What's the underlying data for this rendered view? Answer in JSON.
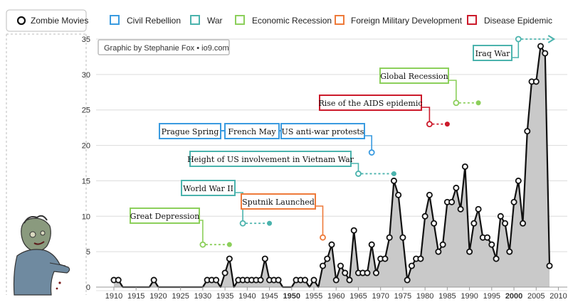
{
  "legend": [
    {
      "key": "zombie",
      "label": "Zombie Movies",
      "color": "#111111"
    },
    {
      "key": "civil",
      "label": "Civil Rebellion",
      "color": "#3a9be0"
    },
    {
      "key": "war",
      "label": "War",
      "color": "#4bb3ad"
    },
    {
      "key": "econ",
      "label": "Economic Recession",
      "color": "#8ccf5b"
    },
    {
      "key": "military",
      "label": "Foreign Military Development",
      "color": "#ee7a3a"
    },
    {
      "key": "disease",
      "label": "Disease Epidemic",
      "color": "#cc1a2b"
    }
  ],
  "credit": "Graphic by Stephanie Fox • io9.com",
  "chart_data": {
    "type": "area",
    "xlim": [
      1906,
      2012
    ],
    "ylim": [
      0,
      35
    ],
    "x_ticks": [
      1910,
      1915,
      1920,
      1925,
      1930,
      1935,
      1940,
      1945,
      1950,
      1955,
      1960,
      1965,
      1970,
      1975,
      1980,
      1985,
      1990,
      1995,
      2000,
      2005,
      2010
    ],
    "bold_x_ticks": [
      1950,
      2000
    ],
    "highlight_x_tick": 2010,
    "y_ticks": [
      0,
      5,
      10,
      15,
      20,
      25,
      30,
      35
    ],
    "grid": true,
    "series": [
      {
        "name": "Zombie Movies",
        "x": [
          1910,
          1911,
          1912,
          1913,
          1914,
          1915,
          1916,
          1917,
          1918,
          1919,
          1920,
          1921,
          1922,
          1923,
          1924,
          1925,
          1926,
          1927,
          1928,
          1929,
          1930,
          1931,
          1932,
          1933,
          1934,
          1935,
          1936,
          1937,
          1938,
          1939,
          1940,
          1941,
          1942,
          1943,
          1944,
          1945,
          1946,
          1947,
          1948,
          1949,
          1950,
          1951,
          1952,
          1953,
          1954,
          1955,
          1956,
          1957,
          1958,
          1959,
          1960,
          1961,
          1962,
          1963,
          1964,
          1965,
          1966,
          1967,
          1968,
          1969,
          1970,
          1971,
          1972,
          1973,
          1974,
          1975,
          1976,
          1977,
          1978,
          1979,
          1980,
          1981,
          1982,
          1983,
          1984,
          1985,
          1986,
          1987,
          1988,
          1989,
          1990,
          1991,
          1992,
          1993,
          1994,
          1995,
          1996,
          1997,
          1998,
          1999,
          2000,
          2001,
          2002,
          2003,
          2004,
          2005,
          2006,
          2007,
          2008
        ],
        "values": [
          1,
          1,
          0,
          0,
          0,
          0,
          0,
          0,
          0,
          1,
          0,
          0,
          0,
          0,
          0,
          0,
          0,
          0,
          0,
          0,
          0,
          1,
          1,
          1,
          0,
          2,
          4,
          0,
          1,
          1,
          1,
          1,
          1,
          1,
          4,
          1,
          1,
          1,
          0,
          0,
          0,
          1,
          1,
          1,
          0,
          1,
          0,
          3,
          4,
          6,
          1,
          3,
          2,
          1,
          8,
          2,
          2,
          2,
          6,
          2,
          4,
          4,
          7,
          15,
          13,
          7,
          1,
          3,
          4,
          4,
          10,
          13,
          9,
          5,
          6,
          12,
          12,
          14,
          11,
          17,
          5,
          9,
          11,
          7,
          7,
          6,
          4,
          10,
          9,
          5,
          12,
          15,
          9,
          22,
          29,
          29,
          34,
          33,
          3
        ],
        "markers": [
          1910,
          1911,
          1919,
          1931,
          1932,
          1933,
          1935,
          1936,
          1938,
          1939,
          1940,
          1941,
          1942,
          1943,
          1944,
          1945,
          1946,
          1947,
          1951,
          1952,
          1953,
          1955,
          1957,
          1958,
          1959,
          1960,
          1961,
          1962,
          1963,
          1964,
          1965,
          1966,
          1967,
          1968,
          1969,
          1970,
          1971,
          1972,
          1973,
          1974,
          1975,
          1976,
          1977,
          1978,
          1979,
          1980,
          1981,
          1982,
          1983,
          1984,
          1985,
          1986,
          1987,
          1988,
          1989,
          1990,
          1991,
          1992,
          1993,
          1994,
          1995,
          1996,
          1997,
          1998,
          1999,
          2000,
          2001,
          2002,
          2003,
          2004,
          2005,
          2006,
          2007,
          2008
        ]
      }
    ],
    "annotations": [
      {
        "text": "Great Depression",
        "category": "econ",
        "x": 1930,
        "y": 6,
        "x_end": 1936
      },
      {
        "text": "World War II",
        "category": "war",
        "x": 1939,
        "y": 9,
        "x_end": 1945
      },
      {
        "text": "Sputnik Launched",
        "category": "military",
        "x": 1957,
        "y": 7
      },
      {
        "text": "Height of US involvement in Vietnam War",
        "category": "war",
        "x": 1965,
        "y": 16,
        "x_end": 1973
      },
      {
        "text": "Prague Spring",
        "category": "civil",
        "x": 1968,
        "y": 19
      },
      {
        "text": "French May",
        "category": "civil",
        "x": 1968,
        "y": 19
      },
      {
        "text": "US anti-war protests",
        "category": "civil",
        "x": 1968,
        "y": 19
      },
      {
        "text": "Rise of the AIDS epidemic",
        "category": "disease",
        "x": 1981,
        "y": 23,
        "x_end": 1985
      },
      {
        "text": "Global Recession",
        "category": "econ",
        "x": 1987,
        "y": 26,
        "x_end": 1992
      },
      {
        "text": "Iraq War",
        "category": "war",
        "x": 2001,
        "y": 35,
        "x_end": 2009,
        "arrow": true
      }
    ]
  }
}
